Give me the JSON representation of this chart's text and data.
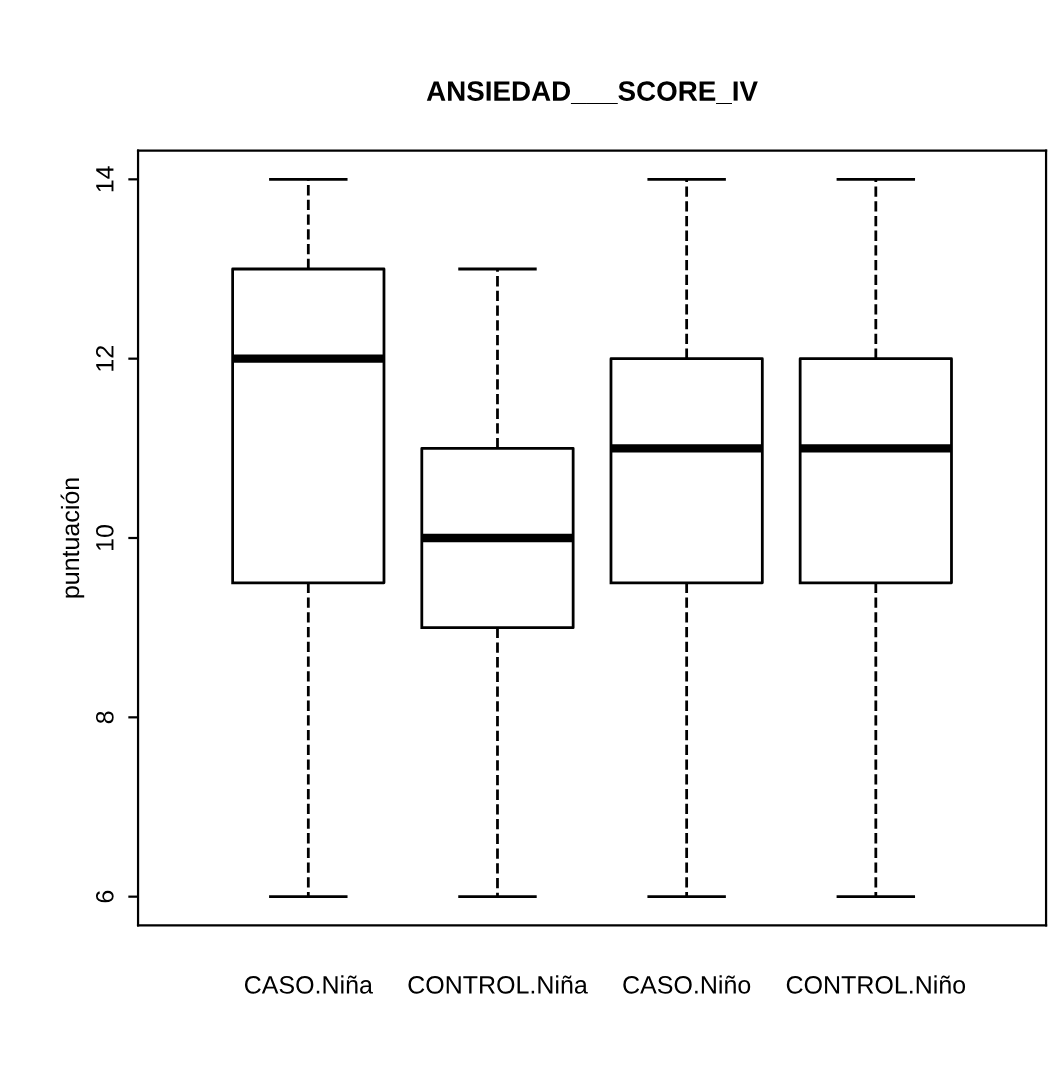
{
  "chart_data": {
    "type": "box",
    "title": "ANSIEDAD___SCORE_IV",
    "ylabel": "puntuación",
    "categories": [
      "CASO.Niña",
      "CONTROL.Niña",
      "CASO.Niño",
      "CONTROL.Niño"
    ],
    "boxes": [
      {
        "low": 6,
        "q1": 9.5,
        "median": 12,
        "q3": 13,
        "high": 14
      },
      {
        "low": 6,
        "q1": 9,
        "median": 10,
        "q3": 11,
        "high": 13
      },
      {
        "low": 6,
        "q1": 9.5,
        "median": 11,
        "q3": 12,
        "high": 14
      },
      {
        "low": 6,
        "q1": 9.5,
        "median": 11,
        "q3": 12,
        "high": 14
      }
    ],
    "ylim": [
      5.68,
      14.32
    ],
    "yticks": [
      6,
      8,
      10,
      12,
      14
    ],
    "grid": false,
    "line_style": "dashed"
  }
}
